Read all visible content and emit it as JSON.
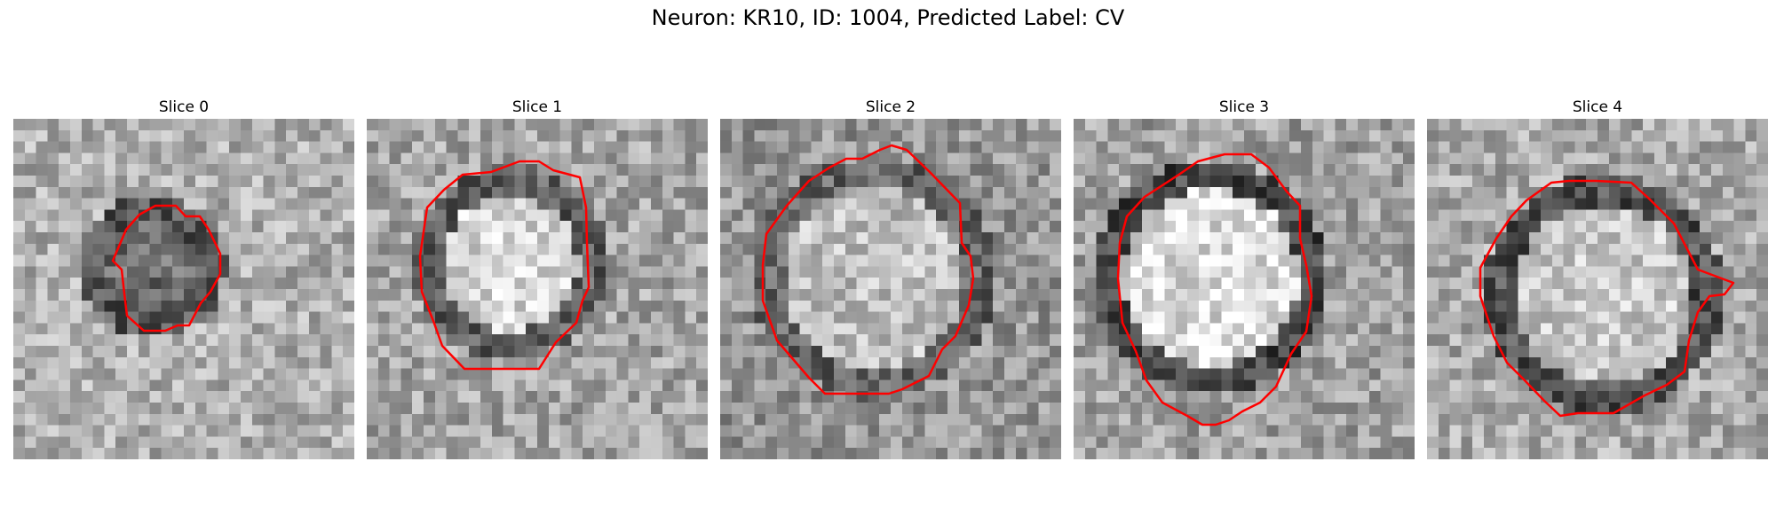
{
  "figure": {
    "title": "Neuron: KR10, ID: 1004, Predicted Label: CV",
    "contour_color": "#ff0000",
    "colormap": "grayscale",
    "panels": [
      {
        "title": "Slice 0",
        "content": "grayscale-micrograph-small-dark-vesicle"
      },
      {
        "title": "Slice 1",
        "content": "grayscale-micrograph-bright-vesicle"
      },
      {
        "title": "Slice 2",
        "content": "grayscale-micrograph-large-vesicle"
      },
      {
        "title": "Slice 3",
        "content": "grayscale-micrograph-bright-vesicle-dark-rim"
      },
      {
        "title": "Slice 4",
        "content": "grayscale-micrograph-vesicle-dark-rim"
      }
    ]
  }
}
